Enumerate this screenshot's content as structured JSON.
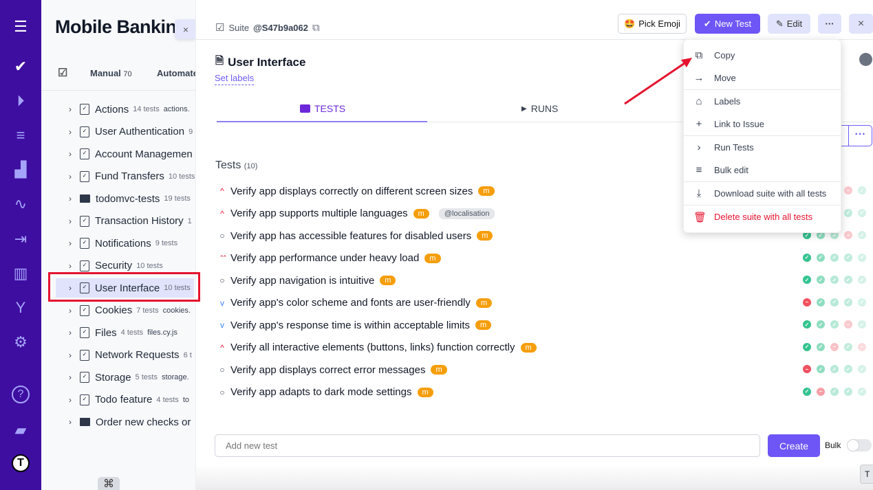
{
  "rail": {
    "icons": [
      "menu-icon",
      "check-icon",
      "play-circle-icon",
      "checklist-icon",
      "steps-icon",
      "pulse-icon",
      "import-icon",
      "analytics-icon",
      "branch-icon",
      "gear-icon",
      "help-icon",
      "folder-icon",
      "logo-icon"
    ]
  },
  "sidebar": {
    "project_title": "Mobile Bankin",
    "close": "×",
    "tabs": {
      "manual_label": "Manual",
      "manual_count": "70",
      "automated_label": "Automate"
    },
    "items": [
      {
        "name": "Actions",
        "count": "14 tests",
        "file": "actions.",
        "type": "suite"
      },
      {
        "name": "User Authentication",
        "count": "9",
        "file": "",
        "type": "suite"
      },
      {
        "name": "Account Managemen",
        "count": "",
        "file": "",
        "type": "suite"
      },
      {
        "name": "Fund Transfers",
        "count": "10 tests",
        "file": "",
        "type": "suite"
      },
      {
        "name": "todomvc-tests",
        "count": "19 tests",
        "file": "",
        "type": "folder"
      },
      {
        "name": "Transaction History",
        "count": "1",
        "file": "",
        "type": "suite"
      },
      {
        "name": "Notifications",
        "count": "9 tests",
        "file": "",
        "type": "suite"
      },
      {
        "name": "Security",
        "count": "10 tests",
        "file": "",
        "type": "suite"
      },
      {
        "name": "User Interface",
        "count": "10 tests",
        "file": "",
        "type": "suite",
        "selected": true
      },
      {
        "name": "Cookies",
        "count": "7 tests",
        "file": "cookies.",
        "type": "suite"
      },
      {
        "name": "Files",
        "count": "4 tests",
        "file": "files.cy.js",
        "type": "suite"
      },
      {
        "name": "Network Requests",
        "count": "6 t",
        "file": "",
        "type": "suite"
      },
      {
        "name": "Storage",
        "count": "5 tests",
        "file": "storage.",
        "type": "suite"
      },
      {
        "name": "Todo feature",
        "count": "4 tests",
        "file": "to",
        "type": "suite"
      },
      {
        "name": "Order new checks or",
        "count": "",
        "file": "",
        "type": "folder"
      }
    ],
    "cmd": "⌘"
  },
  "header": {
    "suite_label": "Suite",
    "suite_id": "@S47b9a062",
    "pick_emoji": "Pick Emoji",
    "emoji": "🤩",
    "new_test": "New Test",
    "edit": "Edit",
    "more": "···",
    "close": "×"
  },
  "suite": {
    "title": "User Interface",
    "set_labels": "Set labels"
  },
  "tabs": {
    "tests": "TESTS",
    "runs": "RUNS"
  },
  "tests": {
    "heading": "Tests",
    "count": "(10)",
    "items": [
      {
        "name": "Verify app displays correctly on different screen sizes",
        "priority": "high",
        "badge": "m",
        "label": "",
        "runs": [
          "",
          "",
          "",
          "fail",
          "pass"
        ]
      },
      {
        "name": "Verify app supports multiple languages",
        "priority": "high",
        "badge": "m",
        "label": "@localisation",
        "runs": [
          "",
          "",
          "",
          "pass",
          "pass"
        ]
      },
      {
        "name": "Verify app has accessible features for disabled users",
        "priority": "normal",
        "badge": "m",
        "label": "",
        "runs": [
          "pass",
          "pass",
          "pass",
          "fail",
          "pass"
        ]
      },
      {
        "name": "Verify app performance under heavy load",
        "priority": "critical",
        "badge": "m",
        "label": "",
        "runs": [
          "pass",
          "pass",
          "pass",
          "pass",
          "pass"
        ]
      },
      {
        "name": "Verify app navigation is intuitive",
        "priority": "normal",
        "badge": "m",
        "label": "",
        "runs": [
          "pass",
          "pass",
          "pass",
          "pass",
          "pass"
        ]
      },
      {
        "name": "Verify app's color scheme and fonts are user-friendly",
        "priority": "low",
        "badge": "m",
        "label": "",
        "runs": [
          "fail",
          "pass",
          "pass",
          "pass",
          "pass"
        ]
      },
      {
        "name": "Verify app's response time is within acceptable limits",
        "priority": "low",
        "badge": "m",
        "label": "",
        "runs": [
          "pass",
          "pass",
          "pass",
          "fail",
          "pass"
        ]
      },
      {
        "name": "Verify all interactive elements (buttons, links) function correctly",
        "priority": "high",
        "badge": "m",
        "label": "",
        "runs": [
          "pass",
          "pass",
          "fail",
          "pass",
          "fail"
        ]
      },
      {
        "name": "Verify app displays correct error messages",
        "priority": "normal",
        "badge": "m",
        "label": "",
        "runs": [
          "fail",
          "pass",
          "pass",
          "pass",
          "pass"
        ]
      },
      {
        "name": "Verify app adapts to dark mode settings",
        "priority": "normal",
        "badge": "m",
        "label": "",
        "runs": [
          "pass",
          "fail",
          "pass",
          "pass",
          "pass"
        ]
      }
    ],
    "partial_button": "e",
    "more": "···"
  },
  "add_test": {
    "placeholder": "Add new test",
    "create": "Create",
    "bulk": "Bulk",
    "bulk_on": false
  },
  "menu": {
    "items": [
      {
        "label": "Copy",
        "icon": "copy-icon"
      },
      {
        "label": "Move",
        "icon": "arrow-right-icon"
      },
      {
        "label": "Labels",
        "icon": "tag-icon"
      },
      {
        "label": "Link to Issue",
        "icon": "plus-icon"
      },
      {
        "label": "Run Tests",
        "icon": "chevron-right-icon"
      },
      {
        "label": "Bulk edit",
        "icon": "bulk-edit-icon"
      },
      {
        "label": "Download suite with all tests",
        "icon": "download-icon"
      },
      {
        "label": "Delete suite with all tests",
        "icon": "trash-icon",
        "danger": true
      }
    ]
  },
  "colors": {
    "rail": "#3e0ea0",
    "accent": "#6d55f6",
    "danger": "#e5132f",
    "pass": "#34c38f",
    "fail": "#f0525f",
    "badge": "#f59e0b"
  },
  "footer_button": "T"
}
